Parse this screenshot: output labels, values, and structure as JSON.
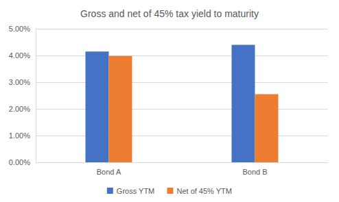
{
  "chart_data": {
    "type": "bar",
    "title": "Gross and net of 45% tax yield to maturity",
    "categories": [
      "Bond A",
      "Bond B"
    ],
    "series": [
      {
        "name": "Gross YTM",
        "color": "#4472c4",
        "values": [
          4.15,
          4.4
        ]
      },
      {
        "name": "Net of 45% YTM",
        "color": "#ed7d31",
        "values": [
          3.98,
          2.55
        ]
      }
    ],
    "ylim": [
      0,
      5
    ],
    "yticks": [
      {
        "value": 0,
        "label": "0.00%"
      },
      {
        "value": 1,
        "label": "1.00%"
      },
      {
        "value": 2,
        "label": "2.00%"
      },
      {
        "value": 3,
        "label": "3.00%"
      },
      {
        "value": 4,
        "label": "4.00%"
      },
      {
        "value": 5,
        "label": "5.00%"
      }
    ],
    "grid": true,
    "legend": "bottom"
  }
}
